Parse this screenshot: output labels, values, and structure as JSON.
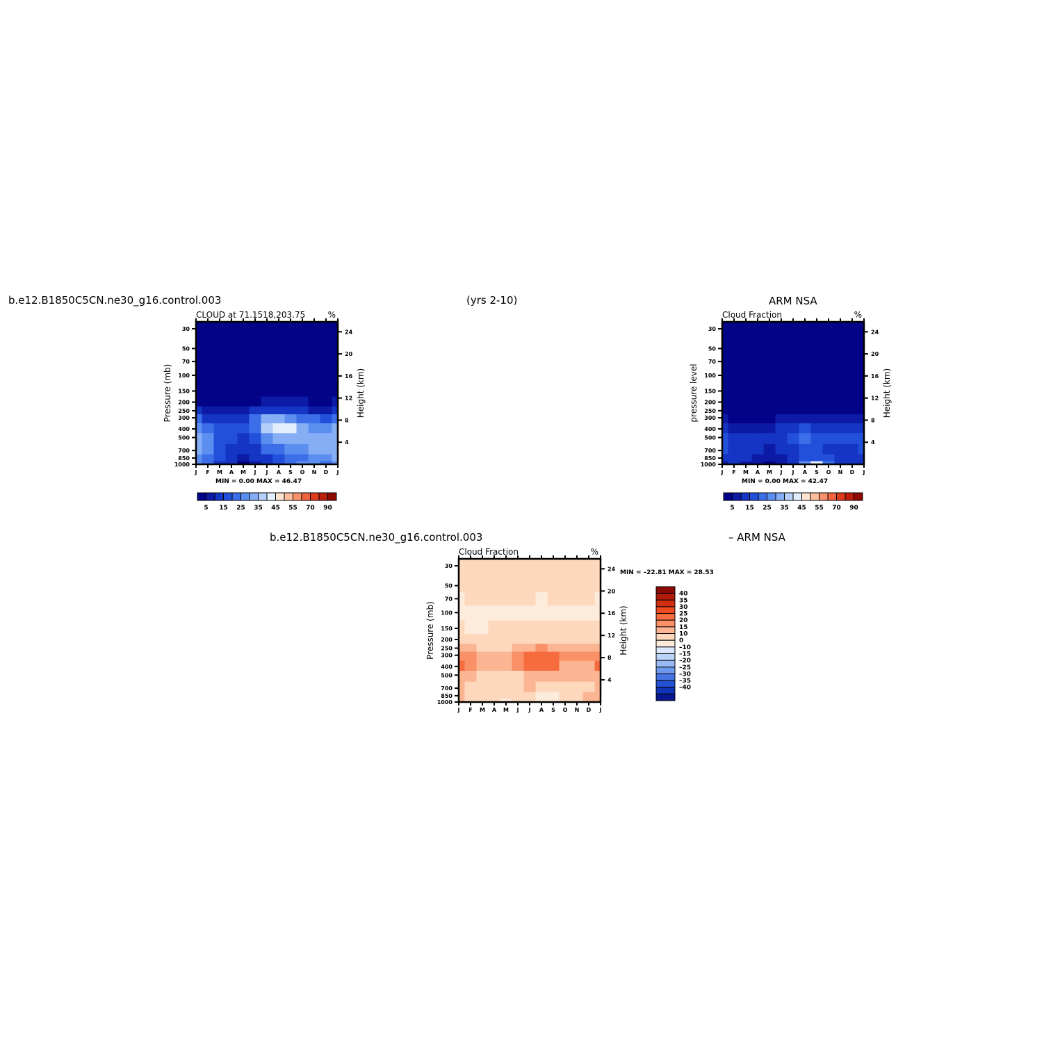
{
  "header": {
    "top_left": "b.e12.B1850C5CN.ne30_g16.control.003",
    "top_center": "(yrs 2-10)",
    "top_right": "ARM  NSA",
    "bottom_left": "b.e12.B1850C5CN.ne30_g16.control.003",
    "bottom_right": "–  ARM  NSA"
  },
  "chart_data": [
    {
      "id": "model",
      "type": "heatmap",
      "title": "CLOUD at 71.1518,203.75",
      "units": "%",
      "ylabel": "Pressure (mb)",
      "y2label": "Height (km)",
      "x": [
        "J",
        "F",
        "M",
        "A",
        "M",
        "J",
        "J",
        "A",
        "S",
        "O",
        "N",
        "D",
        "J"
      ],
      "y_ticks": [
        "30",
        "50",
        "70",
        "100",
        "150",
        "200",
        "250",
        "300",
        "400",
        "500",
        "700",
        "850",
        "1000"
      ],
      "y2_ticks": [
        "24",
        "20",
        "16",
        "12",
        "8",
        "4"
      ],
      "min_max_text": "MIN =    0.00  MAX =   46.47",
      "colorbar_labels": [
        "5",
        "15",
        "25",
        "35",
        "45",
        "55",
        "70",
        "90"
      ],
      "colorbar_colors": [
        "#030388",
        "#0c1aa6",
        "#1535c4",
        "#2350db",
        "#3b6ee8",
        "#5c8ef0",
        "#86aef5",
        "#b5cffa",
        "#e3eefd",
        "#fde2cf",
        "#fbbd9c",
        "#f7916a",
        "#ef633e",
        "#dd3b1d",
        "#bb1f0c",
        "#8f0b04"
      ],
      "series": [
        {
          "name": "",
          "values": [
            [
              0,
              0,
              0,
              0,
              0,
              0,
              0,
              0,
              0,
              0,
              0,
              0,
              0
            ],
            [
              0,
              0,
              0,
              0,
              0,
              0,
              0,
              0,
              0,
              0,
              0,
              0,
              0
            ],
            [
              0,
              0,
              0,
              0,
              0,
              0,
              0,
              0,
              0,
              0,
              0,
              0,
              0
            ],
            [
              0,
              0,
              0,
              0,
              0,
              0,
              0,
              0,
              0,
              0,
              0,
              0,
              0
            ],
            [
              0,
              0,
              0,
              0,
              0,
              0,
              0,
              0,
              0,
              0,
              0,
              0,
              0
            ],
            [
              4,
              3,
              2,
              2,
              3,
              4,
              6,
              6,
              6,
              5,
              4,
              3,
              5
            ],
            [
              10,
              7,
              6,
              6,
              8,
              12,
              14,
              14,
              12,
              11,
              9,
              8,
              12
            ],
            [
              20,
              14,
              13,
              12,
              14,
              22,
              32,
              30,
              28,
              24,
              20,
              18,
              24
            ],
            [
              26,
              22,
              18,
              16,
              18,
              22,
              36,
              40,
              40,
              30,
              28,
              28,
              30
            ],
            [
              30,
              28,
              18,
              16,
              14,
              18,
              26,
              30,
              32,
              30,
              30,
              30,
              32
            ],
            [
              30,
              26,
              18,
              14,
              12,
              14,
              20,
              22,
              26,
              28,
              30,
              30,
              32
            ],
            [
              28,
              20,
              16,
              12,
              8,
              10,
              14,
              16,
              20,
              24,
              28,
              28,
              30
            ],
            [
              26,
              20,
              14,
              10,
              4,
              8,
              14,
              18,
              24,
              28,
              26,
              24,
              28
            ]
          ]
        }
      ]
    },
    {
      "id": "obs",
      "type": "heatmap",
      "title": "Cloud Fraction",
      "units": "%",
      "ylabel": "pressure level",
      "y2label": "Height (km)",
      "x": [
        "J",
        "F",
        "M",
        "A",
        "M",
        "J",
        "J",
        "A",
        "S",
        "O",
        "N",
        "D",
        "J"
      ],
      "y_ticks": [
        "30",
        "50",
        "70",
        "100",
        "150",
        "200",
        "250",
        "300",
        "400",
        "500",
        "700",
        "850",
        "1000"
      ],
      "y2_ticks": [
        "24",
        "20",
        "16",
        "12",
        "8",
        "4"
      ],
      "min_max_text": "MIN =    0.00  MAX =   42.47",
      "colorbar_labels": [
        "5",
        "15",
        "25",
        "35",
        "45",
        "55",
        "70",
        "90"
      ],
      "series": [
        {
          "name": "",
          "values": [
            [
              0,
              0,
              0,
              0,
              0,
              0,
              0,
              0,
              0,
              0,
              0,
              0,
              0
            ],
            [
              0,
              0,
              0,
              0,
              0,
              0,
              0,
              0,
              0,
              0,
              0,
              0,
              0
            ],
            [
              0,
              0,
              0,
              0,
              0,
              0,
              0,
              0,
              0,
              0,
              0,
              0,
              0
            ],
            [
              0,
              0,
              0,
              0,
              0,
              0,
              0,
              0,
              0,
              0,
              0,
              0,
              0
            ],
            [
              0,
              0,
              0,
              0,
              0,
              0,
              0,
              0,
              0,
              0,
              0,
              0,
              0
            ],
            [
              0,
              0,
              0,
              0,
              0,
              0,
              0,
              0,
              0,
              0,
              0,
              0,
              0
            ],
            [
              2,
              1,
              1,
              1,
              1,
              2,
              3,
              4,
              3,
              2,
              2,
              2,
              3
            ],
            [
              6,
              4,
              4,
              3,
              4,
              6,
              8,
              9,
              8,
              6,
              5,
              5,
              7
            ],
            [
              12,
              9,
              8,
              7,
              8,
              11,
              14,
              16,
              14,
              11,
              10,
              10,
              12
            ],
            [
              18,
              14,
              12,
              10,
              11,
              14,
              18,
              20,
              18,
              16,
              15,
              15,
              17
            ],
            [
              16,
              14,
              12,
              10,
              8,
              10,
              14,
              16,
              16,
              14,
              14,
              14,
              16
            ],
            [
              12,
              12,
              10,
              8,
              6,
              8,
              12,
              16,
              18,
              16,
              12,
              12,
              14
            ],
            [
              8,
              10,
              8,
              6,
              4,
              6,
              10,
              26,
              40,
              24,
              12,
              10,
              10
            ]
          ]
        }
      ]
    },
    {
      "id": "diff",
      "type": "heatmap",
      "title": "Cloud Fraction",
      "units": "%",
      "ylabel": "Pressure (mb)",
      "y2label": "Height (km)",
      "x": [
        "J",
        "F",
        "M",
        "A",
        "M",
        "J",
        "J",
        "A",
        "S",
        "O",
        "N",
        "D",
        "J"
      ],
      "y_ticks": [
        "30",
        "50",
        "70",
        "100",
        "150",
        "200",
        "250",
        "300",
        "400",
        "500",
        "700",
        "850",
        "1000"
      ],
      "y2_ticks": [
        "24",
        "20",
        "16",
        "12",
        "8",
        "4"
      ],
      "min_max_text": "MIN = –22.81  MAX =   28.53",
      "colorbar_labels": [
        "40",
        "35",
        "30",
        "25",
        "20",
        "15",
        "10",
        "0",
        "–10",
        "–15",
        "–20",
        "–25",
        "–30",
        "–35",
        "–40"
      ],
      "colorbar_colors": [
        "#8c0a05",
        "#b01b0a",
        "#d22e13",
        "#ee4a22",
        "#f66c3e",
        "#f99066",
        "#fbb592",
        "#fdd8bd",
        "#fdebdc",
        "#d9e8fd",
        "#bcd4fa",
        "#98baf5",
        "#6f99ee",
        "#4674e3",
        "#2452d4",
        "#1133b8",
        "#07198f"
      ],
      "series": [
        {
          "name": "",
          "values": [
            [
              2,
              2,
              2,
              2,
              2,
              2,
              2,
              2,
              2,
              2,
              2,
              2,
              2
            ],
            [
              2,
              2,
              2,
              2,
              2,
              2,
              2,
              2,
              2,
              2,
              2,
              2,
              2
            ],
            [
              -2,
              2,
              2,
              2,
              2,
              2,
              2,
              -2,
              2,
              2,
              2,
              2,
              -2
            ],
            [
              -2,
              -2,
              -2,
              -2,
              -2,
              -2,
              -2,
              -2,
              -2,
              -2,
              -2,
              -2,
              -2
            ],
            [
              2,
              -2,
              -2,
              2,
              2,
              2,
              2,
              2,
              2,
              2,
              2,
              2,
              2
            ],
            [
              5,
              4,
              3,
              3,
              3,
              4,
              5,
              6,
              6,
              5,
              4,
              4,
              5
            ],
            [
              12,
              11,
              8,
              8,
              9,
              12,
              14,
              16,
              14,
              12,
              10,
              10,
              12
            ],
            [
              18,
              16,
              14,
              12,
              14,
              18,
              24,
              24,
              22,
              18,
              16,
              15,
              18
            ],
            [
              22,
              16,
              13,
              12,
              12,
              16,
              22,
              24,
              22,
              14,
              12,
              14,
              20
            ],
            [
              14,
              14,
              6,
              8,
              6,
              8,
              10,
              12,
              12,
              10,
              10,
              10,
              14
            ],
            [
              12,
              8,
              6,
              4,
              4,
              6,
              14,
              6,
              4,
              6,
              6,
              8,
              12
            ],
            [
              12,
              6,
              4,
              4,
              2,
              4,
              4,
              -2,
              -4,
              4,
              6,
              12,
              12
            ],
            [
              12,
              6,
              4,
              2,
              -4,
              2,
              4,
              -4,
              -6,
              4,
              6,
              12,
              12
            ]
          ]
        }
      ]
    }
  ]
}
